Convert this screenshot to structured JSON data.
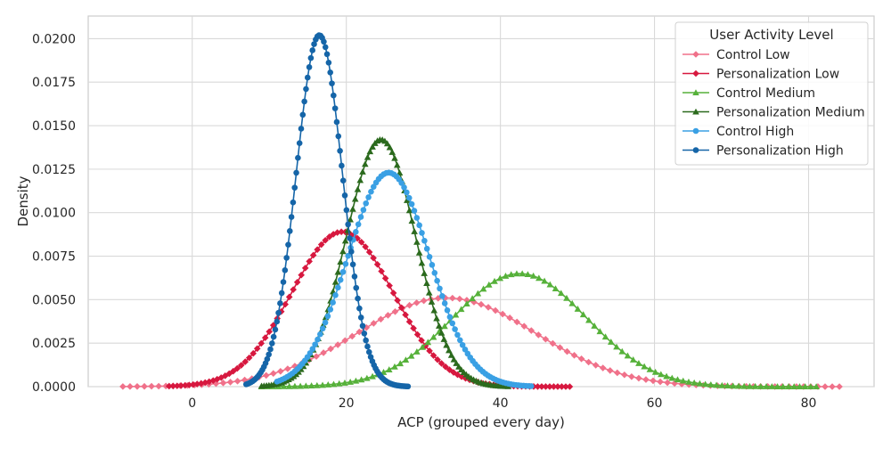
{
  "chart_data": {
    "type": "line",
    "title": "",
    "xlabel": "ACP (grouped every day)",
    "ylabel": "Density",
    "xlim": [
      -13.5,
      88.5
    ],
    "ylim": [
      0,
      0.0213
    ],
    "xticks": [
      0,
      20,
      40,
      60,
      80
    ],
    "xtick_labels": [
      "0",
      "20",
      "40",
      "60",
      "80"
    ],
    "yticks": [
      0,
      0.0025,
      0.005,
      0.0075,
      0.01,
      0.0125,
      0.015,
      0.0175,
      0.02
    ],
    "ytick_labels": [
      "0.0000",
      "0.0025",
      "0.0050",
      "0.0075",
      "0.0100",
      "0.0125",
      "0.0150",
      "0.0175",
      "0.0200"
    ],
    "grid": true,
    "legend": {
      "title": "User Activity Level",
      "position": "top-right"
    },
    "series": [
      {
        "name": "Control Low",
        "color": "#f0718a",
        "marker": "diamond",
        "curve": {
          "mean": 33,
          "sd": 11.5,
          "peak": 0.0051,
          "xmin": -9,
          "xmax": 84,
          "points": 101
        }
      },
      {
        "name": "Personalization Low",
        "color": "#d7183f",
        "marker": "diamond",
        "curve": {
          "mean": 19.5,
          "sd": 6.6,
          "peak": 0.0089,
          "xmin": -3,
          "xmax": 49,
          "points": 101
        }
      },
      {
        "name": "Control Medium",
        "color": "#56b13a",
        "marker": "triangle",
        "curve": {
          "mean": 42.5,
          "sd": 8.7,
          "peak": 0.0065,
          "xmin": 9,
          "xmax": 81,
          "points": 101
        }
      },
      {
        "name": "Personalization Medium",
        "color": "#2b6a1d",
        "marker": "triangle",
        "curve": {
          "mean": 24.5,
          "sd": 4.5,
          "peak": 0.0142,
          "xmin": 9,
          "xmax": 41,
          "points": 101
        }
      },
      {
        "name": "Control High",
        "color": "#3aa0e4",
        "marker": "circle",
        "curve": {
          "mean": 25.5,
          "sd": 5.3,
          "peak": 0.0123,
          "xmin": 11,
          "xmax": 44,
          "points": 101
        }
      },
      {
        "name": "Personalization High",
        "color": "#1565a8",
        "marker": "circle",
        "curve": {
          "mean": 16.5,
          "sd": 3.0,
          "peak": 0.0202,
          "xmin": 7,
          "xmax": 28,
          "points": 101
        }
      }
    ]
  }
}
